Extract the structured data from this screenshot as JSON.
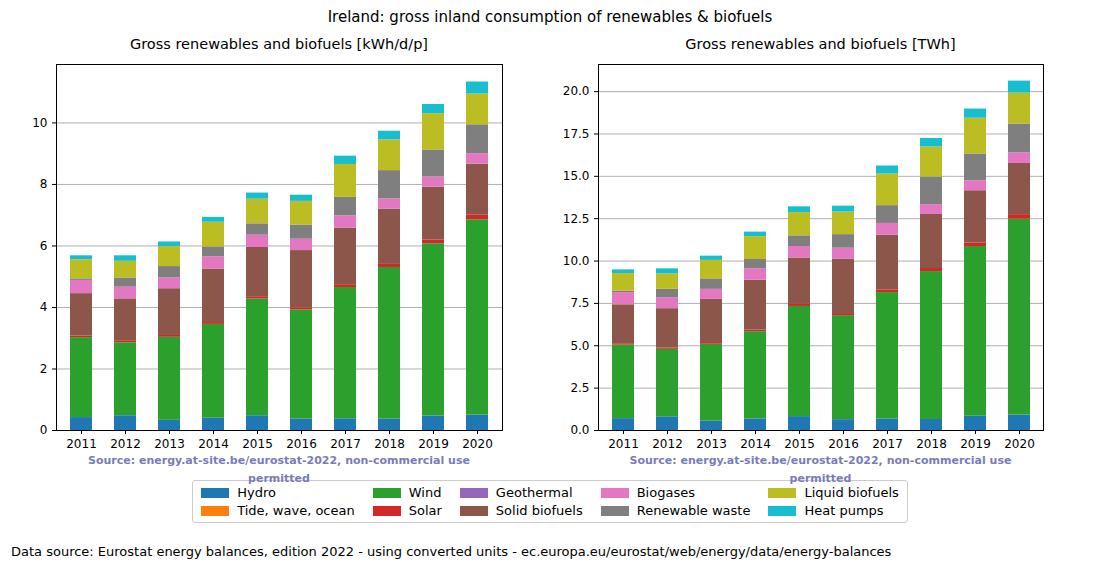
{
  "title": "Ireland: gross inland consumption of renewables & biofuels",
  "footer": "Data source: Eurostat energy balances, edition 2022 - using converted units - ec.europa.eu/eurostat/web/energy/data/energy-balances",
  "chart_data": [
    {
      "type": "bar",
      "title": "Gross renewables and biofuels [kWh/d/p]",
      "annotation": "Source: energy.at-site.be/eurostat-2022, non-commercial use permitted",
      "stacked": true,
      "grid": true,
      "legend": "bottom",
      "categories": [
        "2011",
        "2012",
        "2013",
        "2014",
        "2015",
        "2016",
        "2017",
        "2018",
        "2019",
        "2020"
      ],
      "ylim": [
        0,
        11.9
      ],
      "yticks": [
        0,
        2,
        4,
        6,
        8,
        10
      ],
      "series": [
        {
          "name": "Hydro",
          "color": "#1f77b4",
          "values": [
            0.42,
            0.48,
            0.33,
            0.4,
            0.48,
            0.37,
            0.38,
            0.37,
            0.47,
            0.5
          ]
        },
        {
          "name": "Tide, wave, ocean",
          "color": "#ff7f0e",
          "values": [
            0,
            0,
            0,
            0,
            0,
            0,
            0,
            0,
            0,
            0
          ]
        },
        {
          "name": "Wind",
          "color": "#2ca02c",
          "values": [
            2.6,
            2.37,
            2.7,
            3.05,
            3.8,
            3.55,
            4.27,
            4.93,
            5.6,
            6.35
          ]
        },
        {
          "name": "Solar",
          "color": "#d62728",
          "values": [
            0.05,
            0.05,
            0.06,
            0.06,
            0.07,
            0.07,
            0.09,
            0.1,
            0.12,
            0.15
          ]
        },
        {
          "name": "Geothermal",
          "color": "#9467bd",
          "values": [
            0,
            0,
            0,
            0,
            0,
            0,
            0,
            0,
            0,
            0
          ]
        },
        {
          "name": "Solid biofuels",
          "color": "#8c564b",
          "values": [
            1.38,
            1.38,
            1.52,
            1.74,
            1.6,
            1.86,
            1.84,
            1.8,
            1.72,
            1.66
          ]
        },
        {
          "name": "Biogases",
          "color": "#e377c2",
          "values": [
            0.43,
            0.38,
            0.35,
            0.4,
            0.4,
            0.37,
            0.4,
            0.33,
            0.33,
            0.34
          ]
        },
        {
          "name": "Renewable waste",
          "color": "#7f7f7f",
          "values": [
            0.05,
            0.3,
            0.37,
            0.32,
            0.37,
            0.46,
            0.6,
            0.92,
            0.88,
            0.94
          ]
        },
        {
          "name": "Liquid biofuels",
          "color": "#bcbd22",
          "values": [
            0.62,
            0.54,
            0.65,
            0.8,
            0.8,
            0.77,
            1.07,
            1.0,
            1.18,
            1.0
          ]
        },
        {
          "name": "Heat pumps",
          "color": "#17becf",
          "values": [
            0.13,
            0.18,
            0.15,
            0.16,
            0.2,
            0.2,
            0.27,
            0.28,
            0.3,
            0.39
          ]
        }
      ]
    },
    {
      "type": "bar",
      "title": "Gross renewables and biofuels [TWh]",
      "annotation": "Source: energy.at-site.be/eurostat-2022, non-commercial use permitted",
      "stacked": true,
      "grid": true,
      "legend": "bottom",
      "categories": [
        "2011",
        "2012",
        "2013",
        "2014",
        "2015",
        "2016",
        "2017",
        "2018",
        "2019",
        "2020"
      ],
      "ylim": [
        0,
        21.6
      ],
      "yticks": [
        {
          "value": 0,
          "label": "0.0"
        },
        {
          "value": 2.5,
          "label": "2.5"
        },
        {
          "value": 5,
          "label": "5.0"
        },
        {
          "value": 7.5,
          "label": "7.5"
        },
        {
          "value": 10,
          "label": "10.0"
        },
        {
          "value": 12.5,
          "label": "12.5"
        },
        {
          "value": 15,
          "label": "15.0"
        },
        {
          "value": 17.5,
          "label": "17.5"
        },
        {
          "value": 20,
          "label": "20.0"
        }
      ],
      "series": [
        {
          "name": "Hydro",
          "color": "#1f77b4",
          "values": [
            0.7,
            0.81,
            0.55,
            0.68,
            0.82,
            0.64,
            0.67,
            0.65,
            0.84,
            0.91
          ]
        },
        {
          "name": "Tide, wave, ocean",
          "color": "#ff7f0e",
          "values": [
            0,
            0,
            0,
            0,
            0,
            0,
            0,
            0,
            0,
            0
          ]
        },
        {
          "name": "Wind",
          "color": "#2ca02c",
          "values": [
            4.34,
            3.98,
            4.54,
            5.15,
            6.5,
            6.14,
            7.47,
            8.73,
            10.02,
            11.56
          ]
        },
        {
          "name": "Solar",
          "color": "#d62728",
          "values": [
            0.08,
            0.08,
            0.1,
            0.1,
            0.12,
            0.12,
            0.16,
            0.18,
            0.21,
            0.27
          ]
        },
        {
          "name": "Geothermal",
          "color": "#9467bd",
          "values": [
            0,
            0,
            0,
            0,
            0,
            0,
            0,
            0,
            0,
            0
          ]
        },
        {
          "name": "Solid biofuels",
          "color": "#8c564b",
          "values": [
            2.3,
            2.32,
            2.55,
            2.94,
            2.74,
            3.22,
            3.22,
            3.19,
            3.08,
            3.02
          ]
        },
        {
          "name": "Biogases",
          "color": "#e377c2",
          "values": [
            0.72,
            0.64,
            0.59,
            0.68,
            0.68,
            0.64,
            0.7,
            0.58,
            0.59,
            0.62
          ]
        },
        {
          "name": "Renewable waste",
          "color": "#7f7f7f",
          "values": [
            0.08,
            0.5,
            0.62,
            0.54,
            0.63,
            0.8,
            1.05,
            1.63,
            1.58,
            1.71
          ]
        },
        {
          "name": "Liquid biofuels",
          "color": "#bcbd22",
          "values": [
            1.04,
            0.91,
            1.09,
            1.35,
            1.37,
            1.33,
            1.87,
            1.77,
            2.11,
            1.82
          ]
        },
        {
          "name": "Heat pumps",
          "color": "#17becf",
          "values": [
            0.22,
            0.3,
            0.25,
            0.27,
            0.34,
            0.35,
            0.47,
            0.5,
            0.54,
            0.71
          ]
        }
      ]
    }
  ]
}
